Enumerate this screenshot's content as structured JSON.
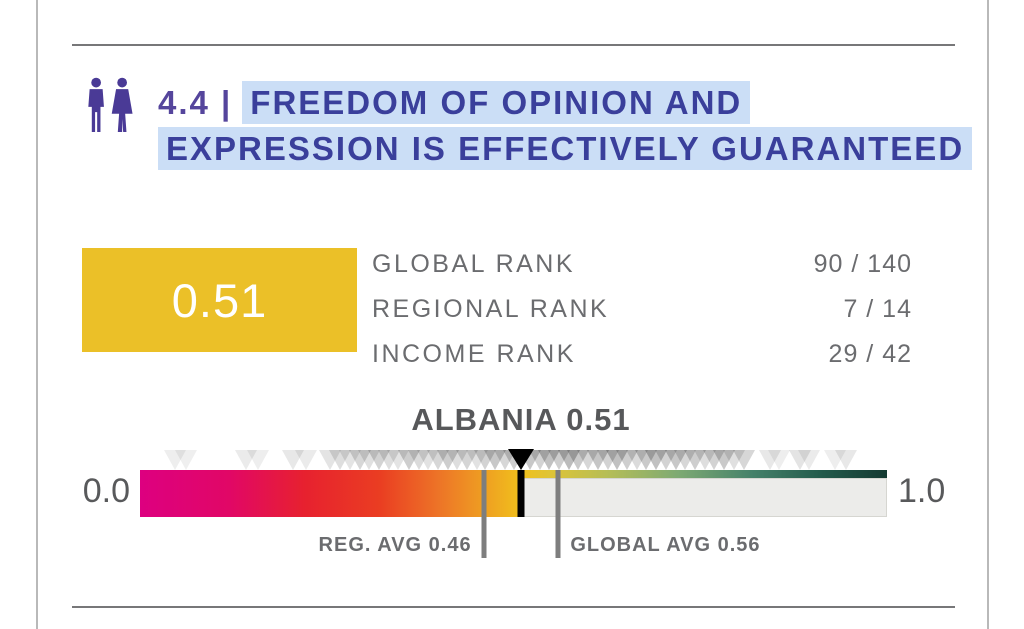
{
  "header": {
    "icon": "man-woman-people-icon",
    "icon_color": "#4a3a96",
    "section_number": "4.4 |",
    "section_number_color": "#55459c",
    "title_line1": "FREEDOM OF OPINION AND",
    "title_line2": "EXPRESSION IS EFFECTIVELY GUARANTEED",
    "title_color": "#3a3f9b",
    "highlight_color": "#cbdef6"
  },
  "score_card": {
    "score": "0.51",
    "box_color": "#ebc028",
    "ranks": [
      {
        "label": "GLOBAL RANK",
        "value": "90 / 140"
      },
      {
        "label": "REGIONAL RANK",
        "value": "7 / 14"
      },
      {
        "label": "INCOME RANK",
        "value": "29 / 42"
      }
    ]
  },
  "chart_data": {
    "type": "bar",
    "subtype": "score-gauge",
    "title": "ALBANIA 0.51",
    "country": "ALBANIA",
    "score": 0.51,
    "axis_min": 0.0,
    "axis_max": 1.0,
    "axis_min_label": "0.0",
    "axis_max_label": "1.0",
    "regional_avg": 0.46,
    "regional_avg_label": "REG. AVG 0.46",
    "global_avg": 0.56,
    "global_avg_label": "GLOBAL AVG 0.56",
    "grid": false,
    "gradient_stops": [
      {
        "pos": "0%",
        "color": "#dd0080"
      },
      {
        "pos": "12%",
        "color": "#e10766"
      },
      {
        "pos": "22%",
        "color": "#e7212f"
      },
      {
        "pos": "32%",
        "color": "#ea3d22"
      },
      {
        "pos": "40%",
        "color": "#ed7427"
      },
      {
        "pos": "47%",
        "color": "#efa521"
      },
      {
        "pos": "51%",
        "color": "#f0c01c"
      },
      {
        "pos": "55%",
        "color": "#dec437"
      },
      {
        "pos": "63%",
        "color": "#b3bd58"
      },
      {
        "pos": "72%",
        "color": "#7eaa73"
      },
      {
        "pos": "82%",
        "color": "#45816a"
      },
      {
        "pos": "91%",
        "color": "#245c4c"
      },
      {
        "pos": "100%",
        "color": "#143931"
      }
    ],
    "country_markers": [
      {
        "v": 0.047,
        "o": 0.08
      },
      {
        "v": 0.062,
        "o": 0.07
      },
      {
        "v": 0.142,
        "o": 0.09
      },
      {
        "v": 0.158,
        "o": 0.08
      },
      {
        "v": 0.205,
        "o": 0.1
      },
      {
        "v": 0.222,
        "o": 0.09
      },
      {
        "v": 0.254,
        "o": 0.12
      },
      {
        "v": 0.268,
        "o": 0.15
      },
      {
        "v": 0.281,
        "o": 0.12
      },
      {
        "v": 0.294,
        "o": 0.18
      },
      {
        "v": 0.307,
        "o": 0.14
      },
      {
        "v": 0.32,
        "o": 0.2
      },
      {
        "v": 0.333,
        "o": 0.15
      },
      {
        "v": 0.346,
        "o": 0.12
      },
      {
        "v": 0.36,
        "o": 0.22
      },
      {
        "v": 0.373,
        "o": 0.16
      },
      {
        "v": 0.386,
        "o": 0.13
      },
      {
        "v": 0.399,
        "o": 0.18
      },
      {
        "v": 0.412,
        "o": 0.22
      },
      {
        "v": 0.425,
        "o": 0.15
      },
      {
        "v": 0.438,
        "o": 0.19
      },
      {
        "v": 0.451,
        "o": 0.13
      },
      {
        "v": 0.462,
        "o": 0.2
      },
      {
        "v": 0.475,
        "o": 0.25
      },
      {
        "v": 0.488,
        "o": 0.18
      },
      {
        "v": 0.5,
        "o": 0.22
      },
      {
        "v": 0.522,
        "o": 0.25
      },
      {
        "v": 0.535,
        "o": 0.2
      },
      {
        "v": 0.548,
        "o": 0.28
      },
      {
        "v": 0.561,
        "o": 0.22
      },
      {
        "v": 0.574,
        "o": 0.3
      },
      {
        "v": 0.587,
        "o": 0.24
      },
      {
        "v": 0.6,
        "o": 0.18
      },
      {
        "v": 0.613,
        "o": 0.26
      },
      {
        "v": 0.626,
        "o": 0.2
      },
      {
        "v": 0.639,
        "o": 0.28
      },
      {
        "v": 0.652,
        "o": 0.22
      },
      {
        "v": 0.665,
        "o": 0.16
      },
      {
        "v": 0.678,
        "o": 0.24
      },
      {
        "v": 0.691,
        "o": 0.28
      },
      {
        "v": 0.704,
        "o": 0.2
      },
      {
        "v": 0.717,
        "o": 0.25
      },
      {
        "v": 0.73,
        "o": 0.18
      },
      {
        "v": 0.743,
        "o": 0.22
      },
      {
        "v": 0.756,
        "o": 0.15
      },
      {
        "v": 0.769,
        "o": 0.2
      },
      {
        "v": 0.782,
        "o": 0.24
      },
      {
        "v": 0.795,
        "o": 0.14
      },
      {
        "v": 0.808,
        "o": 0.18
      },
      {
        "v": 0.843,
        "o": 0.1
      },
      {
        "v": 0.856,
        "o": 0.08
      },
      {
        "v": 0.883,
        "o": 0.12
      },
      {
        "v": 0.896,
        "o": 0.09
      },
      {
        "v": 0.93,
        "o": 0.08
      },
      {
        "v": 0.945,
        "o": 0.1
      }
    ]
  }
}
